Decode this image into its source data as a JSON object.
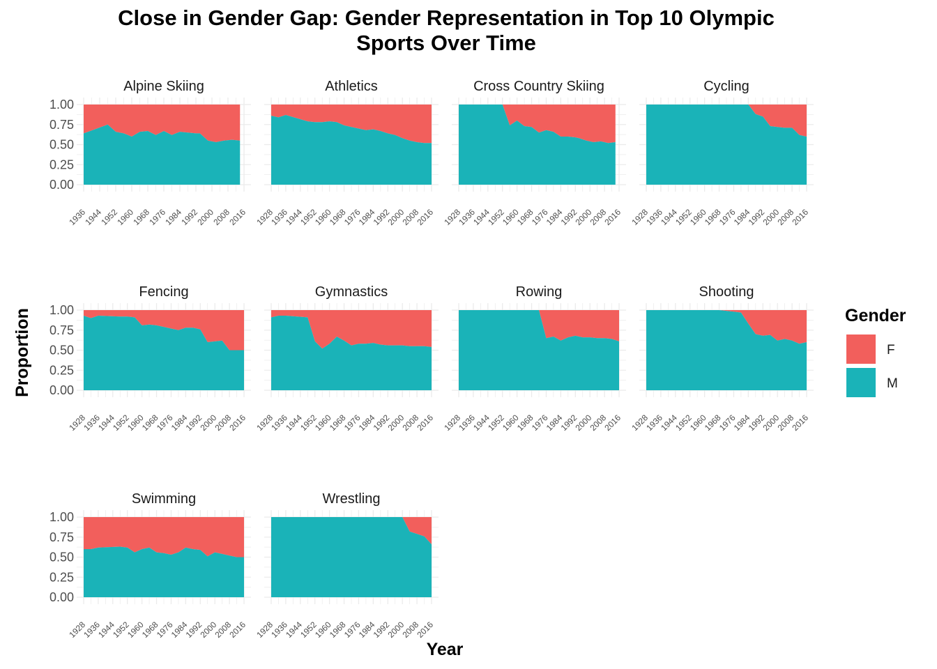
{
  "chart_data": {
    "type": "area",
    "title_lines": [
      "Close in Gender Gap: Gender Representation in Top 10 Olympic",
      "Sports Over Time"
    ],
    "xlabel": "Year",
    "ylabel": "Proportion",
    "ylim": [
      0,
      1
    ],
    "y_ticks": [
      "0.00",
      "0.25",
      "0.50",
      "0.75",
      "1.00"
    ],
    "stacked": true,
    "grid": true,
    "legend": {
      "title": "Gender",
      "position": "right",
      "entries": [
        {
          "label": "F",
          "color": "#F8766D"
        },
        {
          "label": "M",
          "color": "#00BFC4"
        }
      ]
    },
    "colors": {
      "F": "#F25F5C",
      "M": "#1AB3B8"
    },
    "facets": [
      {
        "name": "Alpine Skiing",
        "xlim": [
          1936,
          2016
        ],
        "x_ticks": [
          "1936",
          "1944",
          "1952",
          "1960",
          "1968",
          "1976",
          "1984",
          "1992",
          "2000",
          "2008",
          "2016"
        ],
        "years": [
          1936,
          1948,
          1952,
          1956,
          1960,
          1964,
          1968,
          1972,
          1976,
          1980,
          1984,
          1988,
          1992,
          1994,
          1998,
          2002,
          2006,
          2010,
          2014
        ],
        "male": [
          0.64,
          0.75,
          0.66,
          0.64,
          0.6,
          0.66,
          0.67,
          0.62,
          0.67,
          0.62,
          0.66,
          0.65,
          0.64,
          0.64,
          0.55,
          0.53,
          0.55,
          0.56,
          0.55
        ]
      },
      {
        "name": "Athletics",
        "xlim": [
          1928,
          2016
        ],
        "x_ticks": [
          "1928",
          "1936",
          "1944",
          "1952",
          "1960",
          "1968",
          "1976",
          "1984",
          "1992",
          "2000",
          "2008",
          "2016"
        ],
        "years": [
          1928,
          1932,
          1936,
          1948,
          1952,
          1956,
          1960,
          1964,
          1968,
          1972,
          1976,
          1980,
          1984,
          1988,
          1992,
          1996,
          2000,
          2004,
          2008,
          2012,
          2016
        ],
        "male": [
          0.86,
          0.84,
          0.87,
          0.79,
          0.78,
          0.78,
          0.79,
          0.78,
          0.74,
          0.72,
          0.7,
          0.68,
          0.69,
          0.67,
          0.64,
          0.62,
          0.58,
          0.55,
          0.53,
          0.52,
          0.52
        ]
      },
      {
        "name": "Cross Country Skiing",
        "xlim": [
          1928,
          2016
        ],
        "x_ticks": [
          "1928",
          "1936",
          "1944",
          "1952",
          "1960",
          "1968",
          "1976",
          "1984",
          "1992",
          "2000",
          "2008",
          "2016"
        ],
        "years": [
          1928,
          1932,
          1936,
          1948,
          1952,
          1956,
          1960,
          1964,
          1968,
          1972,
          1976,
          1980,
          1984,
          1988,
          1992,
          1994,
          1998,
          2002,
          2006,
          2010,
          2014
        ],
        "male": [
          1.0,
          1.0,
          1.0,
          1.0,
          1.0,
          0.74,
          0.8,
          0.73,
          0.72,
          0.65,
          0.68,
          0.66,
          0.6,
          0.6,
          0.59,
          0.58,
          0.55,
          0.53,
          0.54,
          0.52,
          0.53
        ]
      },
      {
        "name": "Cycling",
        "xlim": [
          1928,
          2016
        ],
        "x_ticks": [
          "1928",
          "1936",
          "1944",
          "1952",
          "1960",
          "1968",
          "1976",
          "1984",
          "1992",
          "2000",
          "2008",
          "2016"
        ],
        "years": [
          1928,
          1932,
          1936,
          1948,
          1952,
          1956,
          1960,
          1964,
          1968,
          1972,
          1976,
          1980,
          1984,
          1988,
          1992,
          1996,
          2000,
          2004,
          2008,
          2012,
          2016
        ],
        "male": [
          1.0,
          1.0,
          1.0,
          1.0,
          1.0,
          1.0,
          1.0,
          1.0,
          1.0,
          1.0,
          1.0,
          1.0,
          1.0,
          0.88,
          0.85,
          0.73,
          0.72,
          0.71,
          0.71,
          0.62,
          0.6
        ]
      },
      {
        "name": "Fencing",
        "xlim": [
          1928,
          2016
        ],
        "x_ticks": [
          "1928",
          "1936",
          "1944",
          "1952",
          "1960",
          "1968",
          "1976",
          "1984",
          "1992",
          "2000",
          "2008",
          "2016"
        ],
        "years": [
          1928,
          1932,
          1936,
          1948,
          1952,
          1956,
          1960,
          1964,
          1968,
          1972,
          1976,
          1980,
          1984,
          1988,
          1992,
          1996,
          2000,
          2004,
          2008,
          2012,
          2016
        ],
        "male": [
          0.93,
          0.9,
          0.93,
          0.92,
          0.92,
          0.91,
          0.81,
          0.82,
          0.81,
          0.79,
          0.77,
          0.75,
          0.78,
          0.78,
          0.76,
          0.6,
          0.61,
          0.62,
          0.5,
          0.5,
          0.5
        ]
      },
      {
        "name": "Gymnastics",
        "xlim": [
          1928,
          2016
        ],
        "x_ticks": [
          "1928",
          "1936",
          "1944",
          "1952",
          "1960",
          "1968",
          "1976",
          "1984",
          "1992",
          "2000",
          "2008",
          "2016"
        ],
        "years": [
          1928,
          1932,
          1936,
          1948,
          1952,
          1956,
          1960,
          1964,
          1968,
          1972,
          1976,
          1980,
          1984,
          1988,
          1992,
          1996,
          2000,
          2004,
          2008,
          2012,
          2016
        ],
        "male": [
          0.91,
          0.93,
          0.93,
          0.91,
          0.61,
          0.52,
          0.58,
          0.67,
          0.62,
          0.56,
          0.58,
          0.58,
          0.59,
          0.57,
          0.56,
          0.56,
          0.56,
          0.55,
          0.55,
          0.55,
          0.54
        ]
      },
      {
        "name": "Rowing",
        "xlim": [
          1928,
          2016
        ],
        "x_ticks": [
          "1928",
          "1936",
          "1944",
          "1952",
          "1960",
          "1968",
          "1976",
          "1984",
          "1992",
          "2000",
          "2008",
          "2016"
        ],
        "years": [
          1928,
          1932,
          1936,
          1948,
          1952,
          1956,
          1960,
          1964,
          1968,
          1972,
          1976,
          1980,
          1984,
          1988,
          1992,
          1996,
          2000,
          2004,
          2008,
          2012,
          2016
        ],
        "male": [
          1.0,
          1.0,
          1.0,
          1.0,
          1.0,
          1.0,
          1.0,
          1.0,
          1.0,
          1.0,
          0.65,
          0.67,
          0.62,
          0.66,
          0.68,
          0.66,
          0.66,
          0.65,
          0.65,
          0.64,
          0.61
        ]
      },
      {
        "name": "Shooting",
        "xlim": [
          1928,
          2016
        ],
        "x_ticks": [
          "1928",
          "1936",
          "1944",
          "1952",
          "1960",
          "1968",
          "1976",
          "1984",
          "1992",
          "2000",
          "2008",
          "2016"
        ],
        "years": [
          1928,
          1932,
          1936,
          1948,
          1952,
          1956,
          1960,
          1964,
          1968,
          1972,
          1976,
          1980,
          1984,
          1988,
          1992,
          1996,
          2000,
          2004,
          2008,
          2012,
          2016
        ],
        "male": [
          1.0,
          1.0,
          1.0,
          1.0,
          1.0,
          1.0,
          1.0,
          1.0,
          1.0,
          0.99,
          0.98,
          0.97,
          0.83,
          0.7,
          0.68,
          0.69,
          0.62,
          0.64,
          0.62,
          0.58,
          0.6
        ]
      },
      {
        "name": "Swimming",
        "xlim": [
          1928,
          2016
        ],
        "x_ticks": [
          "1928",
          "1936",
          "1944",
          "1952",
          "1960",
          "1968",
          "1976",
          "1984",
          "1992",
          "2000",
          "2008",
          "2016"
        ],
        "years": [
          1928,
          1932,
          1936,
          1948,
          1952,
          1956,
          1960,
          1964,
          1968,
          1972,
          1976,
          1980,
          1984,
          1988,
          1992,
          1996,
          2000,
          2004,
          2008,
          2012,
          2016
        ],
        "male": [
          0.6,
          0.6,
          0.62,
          0.63,
          0.62,
          0.56,
          0.6,
          0.62,
          0.56,
          0.55,
          0.53,
          0.56,
          0.62,
          0.6,
          0.59,
          0.51,
          0.56,
          0.54,
          0.52,
          0.5,
          0.5
        ]
      },
      {
        "name": "Wrestling",
        "xlim": [
          1928,
          2016
        ],
        "x_ticks": [
          "1928",
          "1936",
          "1944",
          "1952",
          "1960",
          "1968",
          "1976",
          "1984",
          "1992",
          "2000",
          "2008",
          "2016"
        ],
        "years": [
          1928,
          1932,
          1936,
          1948,
          1952,
          1956,
          1960,
          1964,
          1968,
          1972,
          1976,
          1980,
          1984,
          1988,
          1992,
          1996,
          2000,
          2004,
          2008,
          2012,
          2016
        ],
        "male": [
          1.0,
          1.0,
          1.0,
          1.0,
          1.0,
          1.0,
          1.0,
          1.0,
          1.0,
          1.0,
          1.0,
          1.0,
          1.0,
          1.0,
          1.0,
          1.0,
          1.0,
          0.82,
          0.79,
          0.76,
          0.66
        ]
      }
    ]
  }
}
